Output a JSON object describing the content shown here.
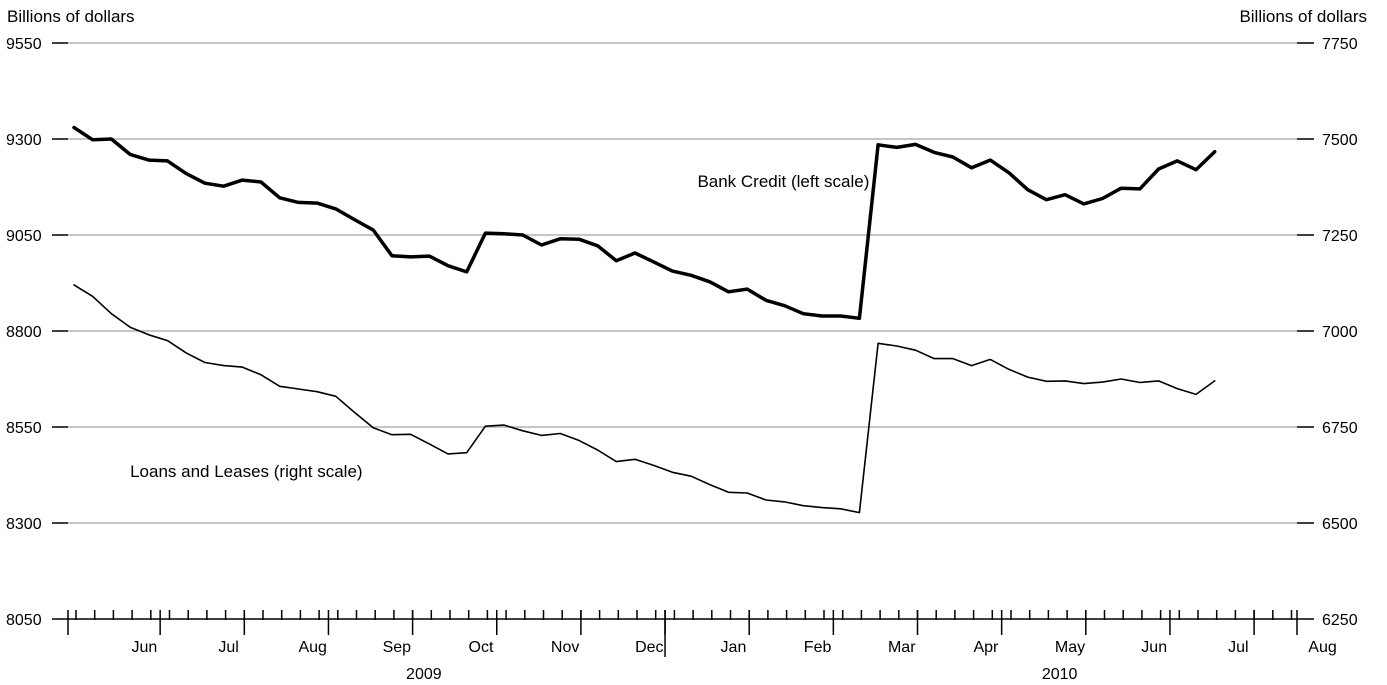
{
  "chart_data": {
    "type": "line",
    "left_axis": {
      "label": "Billions of dollars",
      "ylim": [
        8050,
        9550
      ],
      "ticks": [
        9550,
        9300,
        9050,
        8800,
        8550,
        8300,
        8050
      ]
    },
    "right_axis": {
      "label": "Billions of dollars",
      "ylim": [
        6250,
        7750
      ],
      "ticks": [
        7750,
        7500,
        7250,
        7000,
        6750,
        6500,
        6250
      ]
    },
    "grid": true,
    "x_axis": {
      "weeks": 64,
      "month_labels": [
        {
          "label": "Jun",
          "week": 2
        },
        {
          "label": "Jul",
          "week": 6.5
        },
        {
          "label": "Aug",
          "week": 11
        },
        {
          "label": "Sep",
          "week": 15.5
        },
        {
          "label": "Oct",
          "week": 20
        },
        {
          "label": "Nov",
          "week": 24.5
        },
        {
          "label": "Dec",
          "week": 29
        },
        {
          "label": "Jan",
          "week": 33.5
        },
        {
          "label": "Feb",
          "week": 38
        },
        {
          "label": "Mar",
          "week": 42.5
        },
        {
          "label": "Apr",
          "week": 47
        },
        {
          "label": "May",
          "week": 51.5
        },
        {
          "label": "Jun",
          "week": 56
        },
        {
          "label": "Jul",
          "week": 60.5
        },
        {
          "label": "Aug",
          "week": 65
        }
      ],
      "month_boundaries": [
        4.5,
        9,
        13.5,
        18,
        22.5,
        27,
        31.5,
        36,
        40.5,
        45,
        49.5,
        54,
        58.5,
        63
      ],
      "year_boundary": 31.5,
      "years": [
        {
          "label": "2009",
          "week": 15.5
        },
        {
          "label": "2010",
          "week": 49.5
        }
      ]
    },
    "series": [
      {
        "name": "Bank Credit (left scale)",
        "axis": "left",
        "width": 3.5,
        "values": [
          9330,
          9298,
          9300,
          9260,
          9245,
          9243,
          9210,
          9185,
          9177,
          9193,
          9188,
          9147,
          9135,
          9133,
          9118,
          9090,
          9063,
          8996,
          8993,
          8995,
          8970,
          8954,
          9055,
          9053,
          9050,
          9024,
          9040,
          9039,
          9022,
          8983,
          9003,
          8980,
          8956,
          8945,
          8928,
          8902,
          8909,
          8880,
          8866,
          8845,
          8839,
          8839,
          8833,
          9285,
          9278,
          9286,
          9265,
          9253,
          9225,
          9245,
          9212,
          9168,
          9142,
          9155,
          9131,
          9145,
          9172,
          9170,
          9222,
          9243,
          9220,
          9267
        ]
      },
      {
        "name": "Loans and Leases (right scale)",
        "axis": "right",
        "width": 1.6,
        "values": [
          7120,
          7090,
          7045,
          7010,
          6990,
          6975,
          6943,
          6918,
          6910,
          6906,
          6886,
          6856,
          6849,
          6842,
          6830,
          6788,
          6748,
          6730,
          6731,
          6706,
          6680,
          6683,
          6752,
          6755,
          6740,
          6728,
          6733,
          6715,
          6690,
          6660,
          6666,
          6650,
          6632,
          6622,
          6600,
          6580,
          6578,
          6560,
          6555,
          6545,
          6540,
          6537,
          6527,
          6968,
          6961,
          6950,
          6928,
          6928,
          6910,
          6926,
          6900,
          6880,
          6869,
          6870,
          6863,
          6867,
          6875,
          6866,
          6870,
          6850,
          6835,
          6870
        ]
      }
    ],
    "annotations": [
      {
        "text": "Bank Credit (left scale)",
        "week": 42,
        "left_value": 9175,
        "anchor": "end"
      },
      {
        "text": "Loans and Leases (right scale)",
        "week": 3,
        "left_value": 8420,
        "anchor": "start"
      }
    ]
  }
}
